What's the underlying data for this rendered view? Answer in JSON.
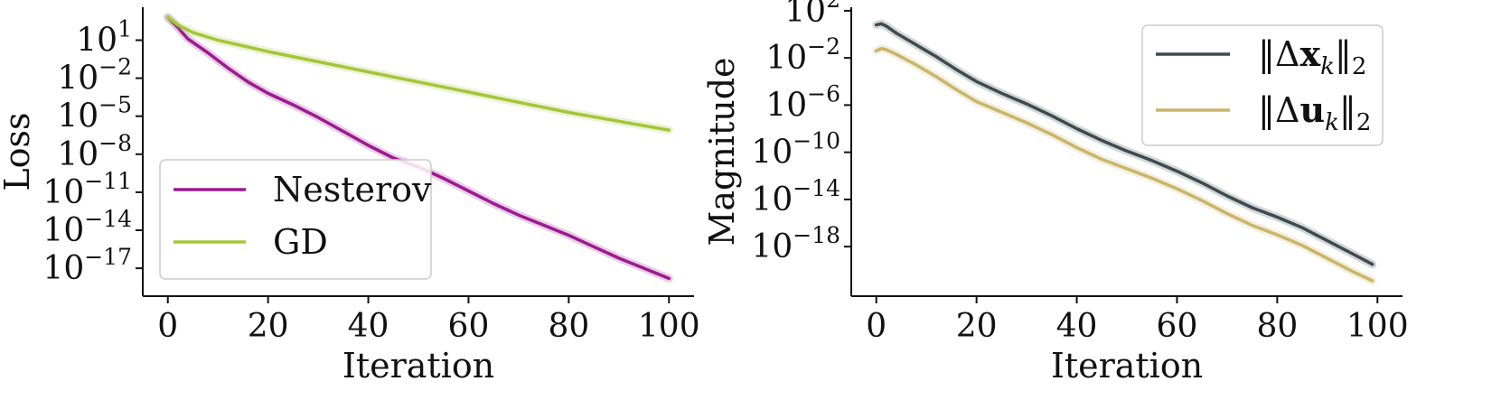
{
  "chart_data": [
    {
      "type": "line",
      "title": "",
      "xlabel": "Iteration",
      "ylabel": "Loss",
      "xscale": "linear",
      "yscale": "log",
      "xlim": [
        -5,
        105
      ],
      "ylim_log10": [
        -19.2,
        3.6
      ],
      "xticks": [
        0,
        20,
        40,
        60,
        80,
        100
      ],
      "yticks": [
        {
          "exp": 1,
          "mant": "10",
          "sup": "1"
        },
        {
          "exp": -2,
          "mant": "10",
          "sup": "−2"
        },
        {
          "exp": -5,
          "mant": "10",
          "sup": "−5"
        },
        {
          "exp": -8,
          "mant": "10",
          "sup": "−8"
        },
        {
          "exp": -11,
          "mant": "10",
          "sup": "−11"
        },
        {
          "exp": -14,
          "mant": "10",
          "sup": "−14"
        },
        {
          "exp": -17,
          "mant": "10",
          "sup": "−17"
        }
      ],
      "grid": false,
      "legend_position": "lower-left",
      "series": [
        {
          "name": "Nesterov",
          "color": "#9b1b8f",
          "points": [
            [
              0,
              2.8
            ],
            [
              2,
              2.0
            ],
            [
              4,
              1.1
            ],
            [
              8,
              0.0
            ],
            [
              12,
              -1.2
            ],
            [
              16,
              -2.3
            ],
            [
              20,
              -3.2
            ],
            [
              25,
              -4.1
            ],
            [
              30,
              -5.1
            ],
            [
              35,
              -6.2
            ],
            [
              40,
              -7.3
            ],
            [
              45,
              -8.3
            ],
            [
              50,
              -9.0
            ],
            [
              55,
              -9.9
            ],
            [
              60,
              -10.9
            ],
            [
              65,
              -11.9
            ],
            [
              70,
              -12.8
            ],
            [
              75,
              -13.6
            ],
            [
              80,
              -14.4
            ],
            [
              85,
              -15.3
            ],
            [
              90,
              -16.2
            ],
            [
              95,
              -17.0
            ],
            [
              100,
              -17.8
            ]
          ]
        },
        {
          "name": "GD",
          "color": "#a3c639",
          "points": [
            [
              0,
              2.8
            ],
            [
              2,
              2.2
            ],
            [
              5,
              1.6
            ],
            [
              10,
              1.0
            ],
            [
              20,
              0.1
            ],
            [
              30,
              -0.7
            ],
            [
              40,
              -1.5
            ],
            [
              50,
              -2.3
            ],
            [
              60,
              -3.1
            ],
            [
              70,
              -3.9
            ],
            [
              80,
              -4.7
            ],
            [
              90,
              -5.4
            ],
            [
              100,
              -6.1
            ]
          ]
        }
      ]
    },
    {
      "type": "line",
      "title": "",
      "xlabel": "Iteration",
      "ylabel": "Magnitude",
      "xscale": "linear",
      "yscale": "log",
      "xlim": [
        -5,
        105
      ],
      "ylim_log10": [
        -22.2,
        2.3
      ],
      "xticks": [
        0,
        20,
        40,
        60,
        80,
        100
      ],
      "yticks": [
        {
          "exp": 2,
          "mant": "10",
          "sup": "2"
        },
        {
          "exp": -2,
          "mant": "10",
          "sup": "−2"
        },
        {
          "exp": -6,
          "mant": "10",
          "sup": "−6"
        },
        {
          "exp": -10,
          "mant": "10",
          "sup": "−10"
        },
        {
          "exp": -14,
          "mant": "10",
          "sup": "−14"
        },
        {
          "exp": -18,
          "mant": "10",
          "sup": "−18"
        }
      ],
      "grid": false,
      "legend_position": "upper-right",
      "series": [
        {
          "name": "‖Δx_k‖₂",
          "color": "#3b4b4f",
          "legend_parts": {
            "open": "‖Δ",
            "bold": "x",
            "sub": "k",
            "close": "‖",
            "close_sub": "2"
          },
          "points": [
            [
              0,
              0.8
            ],
            [
              1,
              0.9
            ],
            [
              2,
              0.7
            ],
            [
              4,
              0.1
            ],
            [
              8,
              -0.9
            ],
            [
              12,
              -1.9
            ],
            [
              16,
              -3.0
            ],
            [
              20,
              -4.0
            ],
            [
              25,
              -5.0
            ],
            [
              30,
              -5.9
            ],
            [
              35,
              -6.9
            ],
            [
              40,
              -8.0
            ],
            [
              45,
              -9.0
            ],
            [
              50,
              -9.9
            ],
            [
              55,
              -10.7
            ],
            [
              60,
              -11.6
            ],
            [
              65,
              -12.6
            ],
            [
              70,
              -13.7
            ],
            [
              75,
              -14.7
            ],
            [
              80,
              -15.5
            ],
            [
              85,
              -16.4
            ],
            [
              90,
              -17.5
            ],
            [
              95,
              -18.6
            ],
            [
              99,
              -19.5
            ]
          ]
        },
        {
          "name": "‖Δu_k‖₂",
          "color": "#c9b56a",
          "legend_parts": {
            "open": "‖Δ",
            "bold": "u",
            "sub": "k",
            "close": "‖",
            "close_sub": "2"
          },
          "points": [
            [
              0,
              -1.4
            ],
            [
              1,
              -1.2
            ],
            [
              2,
              -1.3
            ],
            [
              4,
              -1.7
            ],
            [
              8,
              -2.6
            ],
            [
              12,
              -3.6
            ],
            [
              16,
              -4.7
            ],
            [
              20,
              -5.7
            ],
            [
              25,
              -6.6
            ],
            [
              30,
              -7.5
            ],
            [
              35,
              -8.5
            ],
            [
              40,
              -9.6
            ],
            [
              45,
              -10.6
            ],
            [
              50,
              -11.4
            ],
            [
              55,
              -12.2
            ],
            [
              60,
              -13.1
            ],
            [
              65,
              -14.1
            ],
            [
              70,
              -15.2
            ],
            [
              75,
              -16.2
            ],
            [
              80,
              -17.0
            ],
            [
              85,
              -17.9
            ],
            [
              90,
              -19.0
            ],
            [
              95,
              -20.1
            ],
            [
              99,
              -20.9
            ]
          ]
        }
      ]
    }
  ]
}
